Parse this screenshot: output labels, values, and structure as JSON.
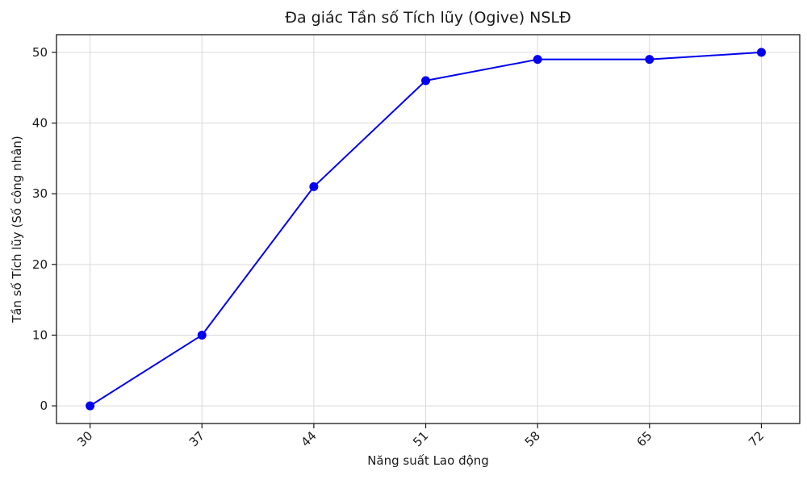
{
  "chart_data": {
    "type": "line",
    "title": "Đa giác Tần số Tích lũy (Ogive) NSLĐ",
    "xlabel": "Năng suất Lao động",
    "ylabel": "Tần số Tích lũy (Số công nhân)",
    "x": [
      30,
      37,
      44,
      51,
      58,
      65,
      72
    ],
    "y": [
      0,
      10,
      31,
      46,
      49,
      49,
      50
    ],
    "x_ticks": [
      30,
      37,
      44,
      51,
      58,
      65,
      72
    ],
    "y_ticks": [
      0,
      10,
      20,
      30,
      40,
      50
    ],
    "xlim": [
      27.9,
      74.4
    ],
    "ylim": [
      -2.5,
      52.5
    ],
    "x_tick_rotation": 45,
    "grid": true,
    "legend_position": "none",
    "line_color": "#0000f0",
    "marker": "circle",
    "marker_color": "#0000f0",
    "grid_color": "#d9d9d9",
    "axis_color": "#1a1a1a",
    "text_color": "#1a1a1a",
    "background_color": "#ffffff"
  }
}
